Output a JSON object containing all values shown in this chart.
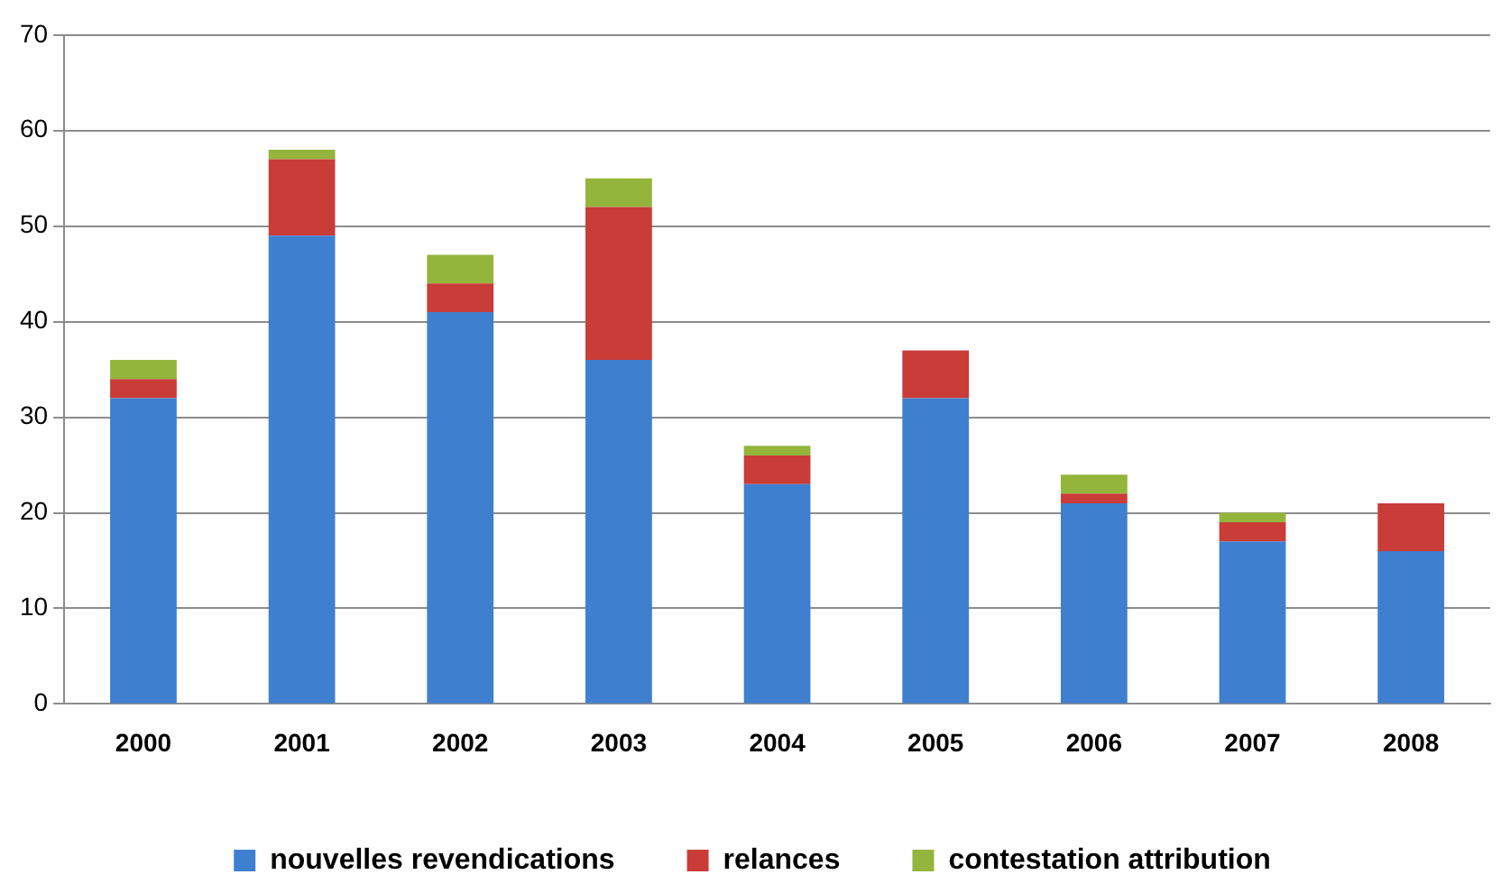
{
  "chart_data": {
    "type": "bar",
    "stacked": true,
    "categories": [
      "2000",
      "2001",
      "2002",
      "2003",
      "2004",
      "2005",
      "2006",
      "2007",
      "2008"
    ],
    "series": [
      {
        "name": "nouvelles revendications",
        "color": "#3f7fcf",
        "values": [
          32,
          49,
          41,
          36,
          23,
          32,
          21,
          17,
          16
        ]
      },
      {
        "name": "relances",
        "color": "#c93c38",
        "values": [
          2,
          8,
          3,
          16,
          3,
          5,
          1,
          2,
          5
        ]
      },
      {
        "name": "contestation attribution",
        "color": "#93b53c",
        "values": [
          2,
          1,
          3,
          3,
          1,
          0,
          2,
          1,
          0
        ]
      }
    ],
    "ylim": [
      0,
      70
    ],
    "yticks": [
      0,
      10,
      20,
      30,
      40,
      50,
      60,
      70
    ],
    "grid": "y",
    "legend": "bottom"
  }
}
